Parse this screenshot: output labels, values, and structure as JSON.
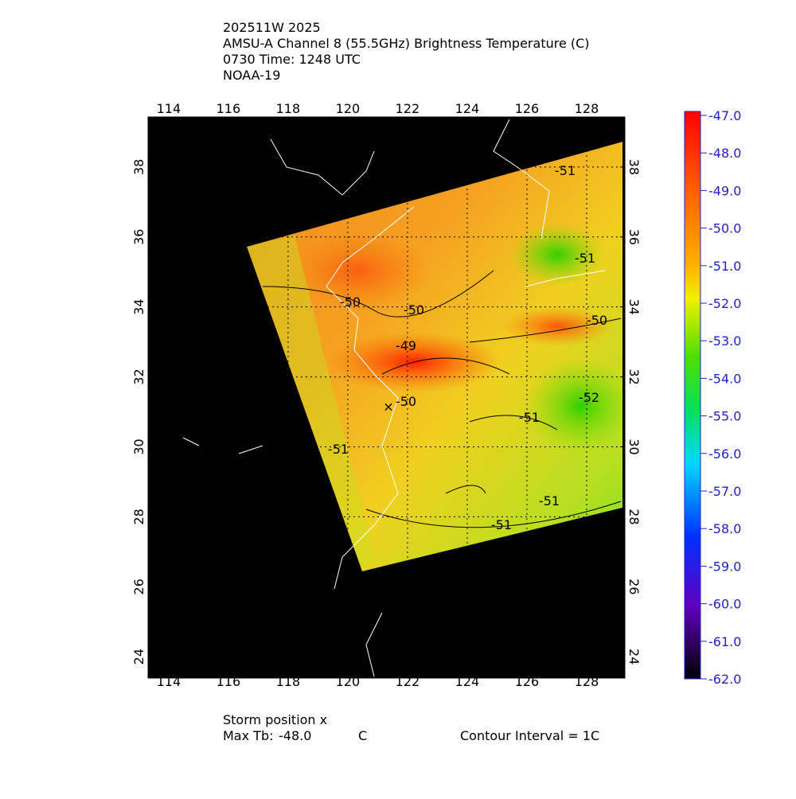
{
  "header": {
    "lines": [
      "202511W 2025",
      "AMSU-A Channel 8 (55.5GHz) Brightness Temperature (C)",
      "0730 Time: 1248 UTC",
      "NOAA-19"
    ]
  },
  "map": {
    "lon_ticks": [
      114,
      116,
      118,
      120,
      122,
      124,
      126,
      128
    ],
    "lat_ticks": [
      24,
      26,
      28,
      30,
      32,
      34,
      36,
      38
    ],
    "contour_labels": [
      "-50",
      "-50",
      "-49",
      "-50",
      "-51",
      "-52",
      "-51",
      "-51",
      "-51",
      "-50",
      "-51",
      "-51"
    ]
  },
  "colorbar": {
    "ticks": [
      {
        "value": -47,
        "label": "-47.0"
      },
      {
        "value": -48,
        "label": "-48.0"
      },
      {
        "value": -49,
        "label": "-49.0"
      },
      {
        "value": -50,
        "label": "-50.0"
      },
      {
        "value": -51,
        "label": "-51.0"
      },
      {
        "value": -52,
        "label": "-52.0"
      },
      {
        "value": -53,
        "label": "-53.0"
      },
      {
        "value": -54,
        "label": "-54.0"
      },
      {
        "value": -55,
        "label": "-55.0"
      },
      {
        "value": -56,
        "label": "-56.0"
      },
      {
        "value": -57,
        "label": "-57.0"
      },
      {
        "value": -58,
        "label": "-58.0"
      },
      {
        "value": -59,
        "label": "-59.0"
      },
      {
        "value": -60,
        "label": "-60.0"
      },
      {
        "value": -61,
        "label": "-61.0"
      },
      {
        "value": -62,
        "label": "-62.0"
      }
    ]
  },
  "footer": {
    "storm": "Storm position x",
    "max_tb_label": "Max Tb:",
    "max_tb": "-48.0",
    "unit": "C",
    "contour_interval": "Contour Interval = 1C"
  }
}
